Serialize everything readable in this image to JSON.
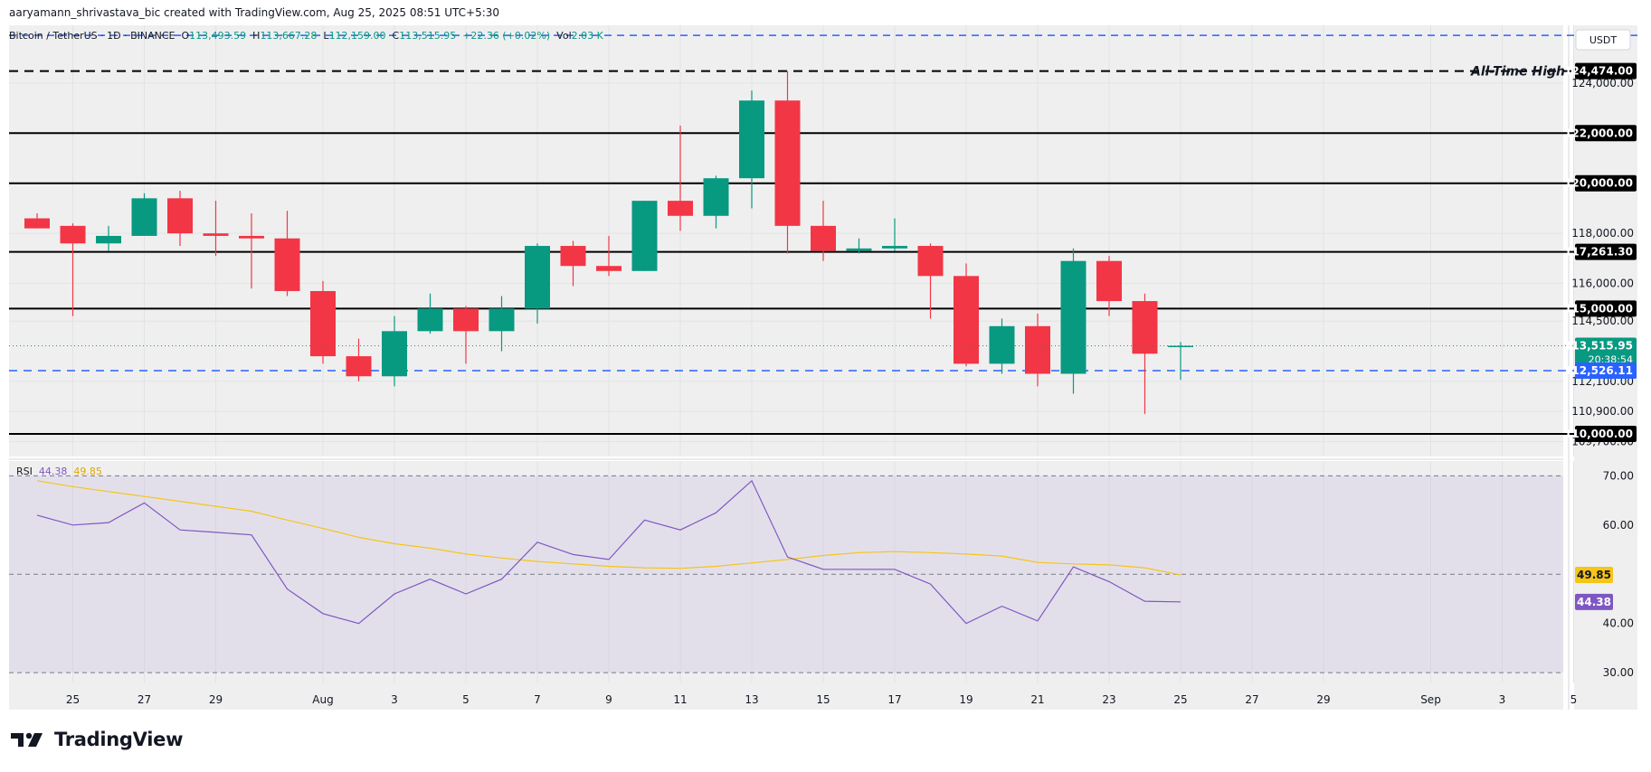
{
  "header": {
    "credit": "aaryamann_shrivastava_bic created with TradingView.com, Aug 25, 2025 08:51 UTC+5:30"
  },
  "legend": {
    "symbol": "Bitcoin / TetherUS · 1D · BINANCE",
    "open_label": "O",
    "open": "113,493.59",
    "high_label": "H",
    "high": "113,667.28",
    "low_label": "L",
    "low": "112,159.00",
    "close_label": "C",
    "close": "113,515.95",
    "change": "+22.36 (+0.02%)",
    "volume_label": "Vol",
    "volume": "2.03 K"
  },
  "currency": "USDT",
  "rsi_legend": {
    "label": "RSI",
    "value": "44.38",
    "ma": "49.85"
  },
  "logo": {
    "text": "TradingView"
  },
  "colors": {
    "up": "#089981",
    "down": "#f23645",
    "rsi_line": "#7e57c2",
    "rsi_ma": "#f5c518",
    "level_line": "#000000",
    "dashed_blue": "#2962ff",
    "rsi_band": "#7e57c2"
  },
  "chart_data": [
    {
      "type": "candlestick",
      "title": "Bitcoin / TetherUS · 1D · BINANCE",
      "ylim": [
        109100,
        126300
      ],
      "x_ticks": [
        "25",
        "27",
        "29",
        "Aug",
        "3",
        "5",
        "7",
        "9",
        "11",
        "13",
        "15",
        "17",
        "19",
        "21",
        "23",
        "25",
        "27",
        "29",
        "Sep",
        "3",
        "5"
      ],
      "y_ticks": [
        {
          "value": 124000,
          "label": "124,000.00"
        },
        {
          "value": 122000,
          "label": "122,000.00"
        },
        {
          "value": 120000,
          "label": "120,000.00"
        },
        {
          "value": 118000,
          "label": "118,000.00"
        },
        {
          "value": 116000,
          "label": "116,000.00"
        },
        {
          "value": 114500,
          "label": "114,500.00"
        },
        {
          "value": 112100,
          "label": "112,100.00"
        },
        {
          "value": 110900,
          "label": "110,900.00"
        },
        {
          "value": 109700,
          "label": "109,700.00"
        }
      ],
      "candles": [
        {
          "date": "Jul 24",
          "open": 118600,
          "high": 118800,
          "low": 118200,
          "close": 118200
        },
        {
          "date": "Jul 25",
          "open": 118300,
          "high": 118400,
          "low": 114700,
          "close": 117600
        },
        {
          "date": "Jul 26",
          "open": 117600,
          "high": 118300,
          "low": 117300,
          "close": 117900
        },
        {
          "date": "Jul 27",
          "open": 117900,
          "high": 119600,
          "low": 117900,
          "close": 119400
        },
        {
          "date": "Jul 28",
          "open": 119400,
          "high": 119700,
          "low": 117500,
          "close": 118000
        },
        {
          "date": "Jul 29",
          "open": 118000,
          "high": 119300,
          "low": 117100,
          "close": 117900
        },
        {
          "date": "Jul 30",
          "open": 117900,
          "high": 118800,
          "low": 115800,
          "close": 117800
        },
        {
          "date": "Jul 31",
          "open": 117800,
          "high": 118900,
          "low": 115500,
          "close": 115700
        },
        {
          "date": "Aug 1",
          "open": 115700,
          "high": 116100,
          "low": 112800,
          "close": 113100
        },
        {
          "date": "Aug 2",
          "open": 113100,
          "high": 113800,
          "low": 112100,
          "close": 112300
        },
        {
          "date": "Aug 3",
          "open": 112300,
          "high": 114700,
          "low": 111900,
          "close": 114100
        },
        {
          "date": "Aug 4",
          "open": 114100,
          "high": 115600,
          "low": 114000,
          "close": 115000
        },
        {
          "date": "Aug 5",
          "open": 115000,
          "high": 115100,
          "low": 112800,
          "close": 114100
        },
        {
          "date": "Aug 6",
          "open": 114100,
          "high": 115500,
          "low": 113300,
          "close": 115000
        },
        {
          "date": "Aug 7",
          "open": 115000,
          "high": 117600,
          "low": 114400,
          "close": 117500
        },
        {
          "date": "Aug 8",
          "open": 117500,
          "high": 117700,
          "low": 115900,
          "close": 116700
        },
        {
          "date": "Aug 9",
          "open": 116700,
          "high": 117900,
          "low": 116300,
          "close": 116500
        },
        {
          "date": "Aug 10",
          "open": 116500,
          "high": 119300,
          "low": 116500,
          "close": 119300
        },
        {
          "date": "Aug 11",
          "open": 119300,
          "high": 122300,
          "low": 118100,
          "close": 118700
        },
        {
          "date": "Aug 12",
          "open": 118700,
          "high": 120300,
          "low": 118200,
          "close": 120200
        },
        {
          "date": "Aug 13",
          "open": 120200,
          "high": 123700,
          "low": 119000,
          "close": 123300
        },
        {
          "date": "Aug 14",
          "open": 123300,
          "high": 124474,
          "low": 117200,
          "close": 118300
        },
        {
          "date": "Aug 15",
          "open": 118300,
          "high": 119300,
          "low": 116900,
          "close": 117300
        },
        {
          "date": "Aug 16",
          "open": 117300,
          "high": 117800,
          "low": 117200,
          "close": 117400
        },
        {
          "date": "Aug 17",
          "open": 117400,
          "high": 118600,
          "low": 117300,
          "close": 117500
        },
        {
          "date": "Aug 18",
          "open": 117500,
          "high": 117600,
          "low": 114600,
          "close": 116300
        },
        {
          "date": "Aug 19",
          "open": 116300,
          "high": 116800,
          "low": 112700,
          "close": 112800
        },
        {
          "date": "Aug 20",
          "open": 112800,
          "high": 114600,
          "low": 112400,
          "close": 114300
        },
        {
          "date": "Aug 21",
          "open": 114300,
          "high": 114800,
          "low": 111900,
          "close": 112400
        },
        {
          "date": "Aug 22",
          "open": 112400,
          "high": 117400,
          "low": 111600,
          "close": 116900
        },
        {
          "date": "Aug 23",
          "open": 116900,
          "high": 117100,
          "low": 114700,
          "close": 115300
        },
        {
          "date": "Aug 24",
          "open": 115300,
          "high": 115600,
          "low": 110800,
          "close": 113200
        },
        {
          "date": "Aug 25",
          "open": 113493.59,
          "high": 113667.28,
          "low": 112159.0,
          "close": 113515.95
        }
      ],
      "levels": [
        {
          "value": 124474,
          "label": "124,474.00",
          "style": "dashed-black",
          "annotation": "All-Time High"
        },
        {
          "value": 122000,
          "label": "122,000.00",
          "style": "solid-black"
        },
        {
          "value": 120000,
          "label": "120,000.00",
          "style": "solid-black"
        },
        {
          "value": 117261.3,
          "label": "117,261.30",
          "style": "solid-black"
        },
        {
          "value": 115000,
          "label": "115,000.00",
          "style": "solid-black"
        },
        {
          "value": 112526.11,
          "label": "112,526.11",
          "style": "dashed-blue"
        },
        {
          "value": 110000,
          "label": "110,000.00",
          "style": "solid-black"
        }
      ],
      "top_dashed_blue": 125900,
      "price_marker": {
        "value": 113515.95,
        "label": "113,515.95",
        "countdown": "20:38:54"
      }
    },
    {
      "type": "line",
      "title": "RSI",
      "ylim": [
        28,
        73
      ],
      "y_ticks": [
        {
          "value": 70,
          "label": "70.00"
        },
        {
          "value": 60,
          "label": "60.00"
        },
        {
          "value": 40,
          "label": "40.00"
        },
        {
          "value": 30,
          "label": "30.00"
        }
      ],
      "band": [
        30,
        70
      ],
      "midline": 50,
      "series": [
        {
          "name": "RSI",
          "values": [
            62,
            60,
            60.5,
            64.5,
            59,
            58.5,
            58,
            47,
            42,
            40,
            46,
            49,
            46,
            49,
            56.5,
            54,
            53,
            61,
            59,
            62.5,
            69,
            53.5,
            51,
            51,
            51,
            48,
            40,
            43.5,
            40.5,
            51.5,
            48.5,
            44.5,
            44.38
          ]
        },
        {
          "name": "RSI MA",
          "values": [
            69,
            67.8,
            66.8,
            65.8,
            64.8,
            63.8,
            62.8,
            61,
            59.3,
            57.5,
            56.2,
            55.3,
            54.1,
            53.3,
            52.6,
            52.1,
            51.6,
            51.3,
            51.2,
            51.6,
            52.3,
            53,
            53.8,
            54.4,
            54.6,
            54.4,
            54.1,
            53.7,
            52.4,
            52.1,
            51.9,
            51.3,
            49.85
          ]
        }
      ],
      "markers": [
        {
          "value": 49.85,
          "label": "49.85"
        },
        {
          "value": 44.38,
          "label": "44.38"
        }
      ]
    }
  ]
}
